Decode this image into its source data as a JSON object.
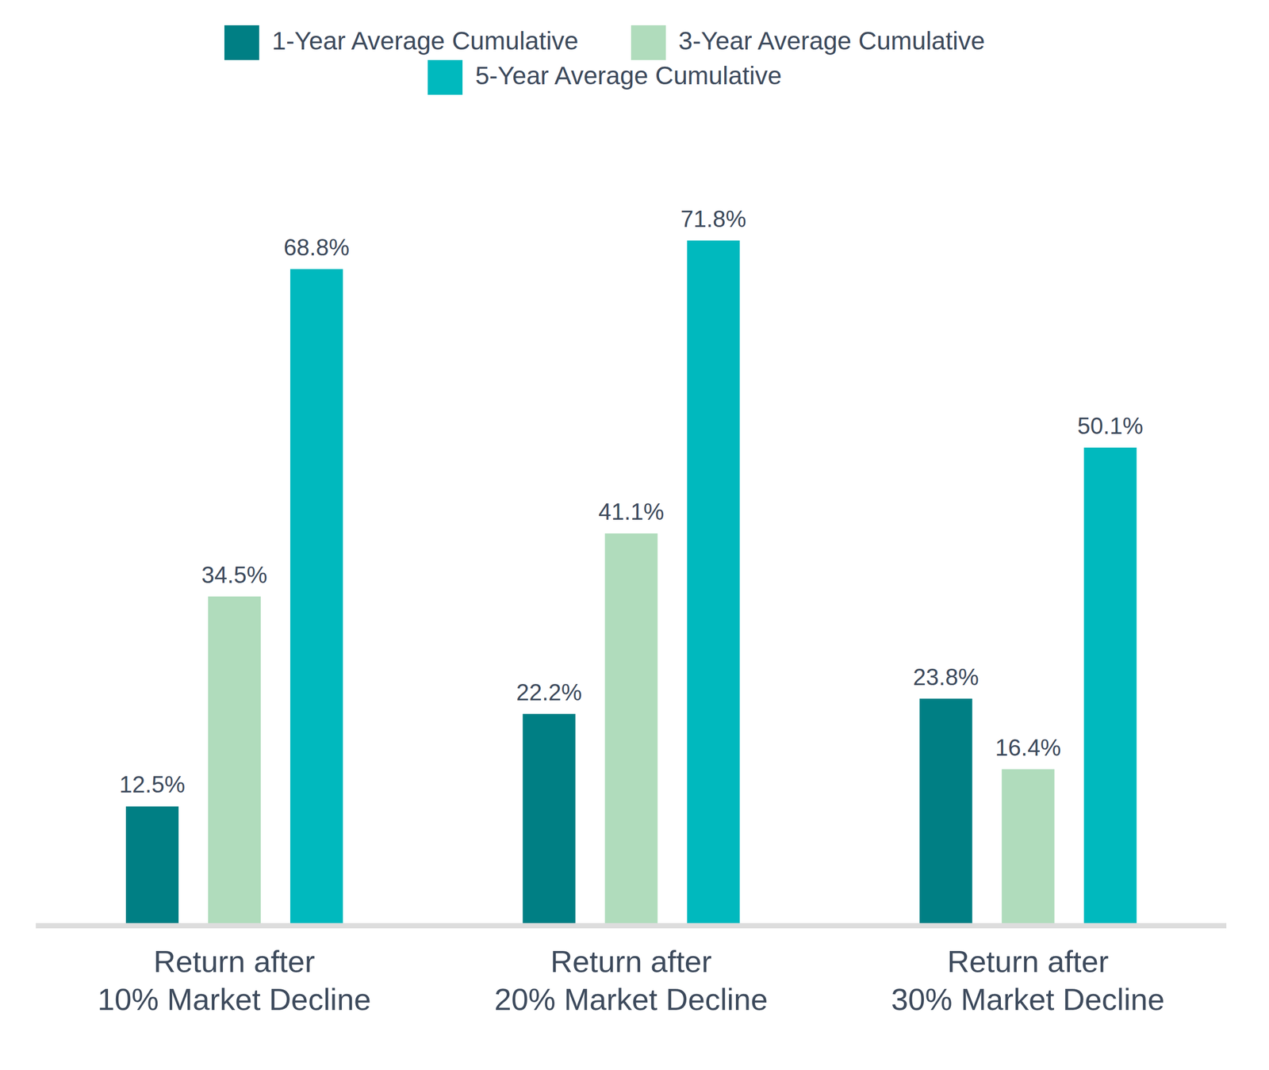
{
  "chart_data": {
    "type": "bar",
    "categories": [
      "Return after 10% Market Decline",
      "Return after 20% Market Decline",
      "Return after 30% Market Decline"
    ],
    "series": [
      {
        "name": "1-Year Average Cumulative",
        "color": "#007f84",
        "values": [
          12.5,
          22.2,
          23.8
        ],
        "value_labels": [
          "12.5%",
          "22.2%",
          "23.8%"
        ]
      },
      {
        "name": "3-Year Average Cumulative",
        "color": "#b0dcbc",
        "values": [
          34.5,
          41.1,
          16.4
        ],
        "value_labels": [
          "34.5%",
          "41.1%",
          "16.4%"
        ]
      },
      {
        "name": "5-Year Average Cumulative",
        "color": "#00b9be",
        "values": [
          68.8,
          71.8,
          50.1
        ],
        "value_labels": [
          "68.8%",
          "71.8%",
          "50.1%"
        ]
      }
    ],
    "ylim": [
      0,
      80
    ],
    "tick_labels": "x",
    "data_labels": true,
    "legend": "top",
    "grid": false
  }
}
